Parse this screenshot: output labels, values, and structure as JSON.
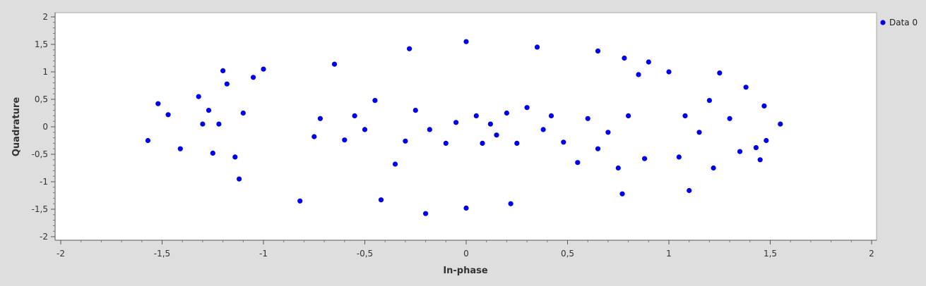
{
  "chart_data": {
    "type": "scatter",
    "title": "",
    "xlabel": "In-phase",
    "ylabel": "Quadrature",
    "xlim": [
      -2,
      2
    ],
    "ylim": [
      -2,
      2
    ],
    "xticks": [
      "-2",
      "-1,5",
      "-1",
      "-0,5",
      "0",
      "0,5",
      "1",
      "1,5",
      "2"
    ],
    "yticks": [
      "2",
      "1,5",
      "1",
      "0,5",
      "0",
      "-0,5",
      "-1",
      "-1,5",
      "-2"
    ],
    "grid": false,
    "legend": "top-right",
    "series": [
      {
        "name": "Data 0",
        "color": "#0000ee",
        "marker": "circle",
        "points": [
          [
            -1.57,
            -0.25
          ],
          [
            -1.52,
            0.42
          ],
          [
            -1.47,
            0.22
          ],
          [
            -1.41,
            -0.4
          ],
          [
            -1.32,
            0.55
          ],
          [
            -1.3,
            0.05
          ],
          [
            -1.27,
            0.3
          ],
          [
            -1.25,
            -0.48
          ],
          [
            -1.22,
            0.05
          ],
          [
            -1.2,
            1.02
          ],
          [
            -1.18,
            0.78
          ],
          [
            -1.14,
            -0.55
          ],
          [
            -1.12,
            -0.95
          ],
          [
            -1.1,
            0.25
          ],
          [
            -1.05,
            0.9
          ],
          [
            -1.0,
            1.05
          ],
          [
            -0.82,
            -1.35
          ],
          [
            -0.75,
            -0.18
          ],
          [
            -0.72,
            0.15
          ],
          [
            -0.65,
            1.14
          ],
          [
            -0.6,
            -0.24
          ],
          [
            -0.55,
            0.2
          ],
          [
            -0.5,
            -0.05
          ],
          [
            -0.45,
            0.48
          ],
          [
            -0.42,
            -1.33
          ],
          [
            -0.35,
            -0.68
          ],
          [
            -0.3,
            -0.26
          ],
          [
            -0.28,
            1.42
          ],
          [
            -0.25,
            0.3
          ],
          [
            -0.2,
            -1.58
          ],
          [
            -0.18,
            -0.05
          ],
          [
            -0.1,
            -0.3
          ],
          [
            -0.05,
            0.08
          ],
          [
            0.0,
            1.55
          ],
          [
            0.0,
            -1.48
          ],
          [
            0.05,
            0.2
          ],
          [
            0.08,
            -0.3
          ],
          [
            0.12,
            0.05
          ],
          [
            0.15,
            -0.15
          ],
          [
            0.2,
            0.25
          ],
          [
            0.22,
            -1.4
          ],
          [
            0.25,
            -0.3
          ],
          [
            0.3,
            0.35
          ],
          [
            0.35,
            1.45
          ],
          [
            0.38,
            -0.05
          ],
          [
            0.42,
            0.2
          ],
          [
            0.48,
            -0.28
          ],
          [
            0.55,
            -0.65
          ],
          [
            0.6,
            0.15
          ],
          [
            0.65,
            -0.4
          ],
          [
            0.65,
            1.38
          ],
          [
            0.7,
            -0.1
          ],
          [
            0.75,
            -0.75
          ],
          [
            0.77,
            -1.22
          ],
          [
            0.78,
            1.25
          ],
          [
            0.8,
            0.2
          ],
          [
            0.85,
            0.95
          ],
          [
            0.88,
            -0.58
          ],
          [
            0.9,
            1.18
          ],
          [
            1.0,
            1.0
          ],
          [
            1.05,
            -0.55
          ],
          [
            1.08,
            0.2
          ],
          [
            1.1,
            -1.16
          ],
          [
            1.15,
            -0.1
          ],
          [
            1.2,
            0.48
          ],
          [
            1.22,
            -0.75
          ],
          [
            1.25,
            0.98
          ],
          [
            1.3,
            0.15
          ],
          [
            1.35,
            -0.45
          ],
          [
            1.38,
            0.72
          ],
          [
            1.43,
            -0.38
          ],
          [
            1.45,
            -0.6
          ],
          [
            1.47,
            0.38
          ],
          [
            1.48,
            -0.25
          ],
          [
            1.55,
            0.05
          ]
        ]
      }
    ]
  }
}
